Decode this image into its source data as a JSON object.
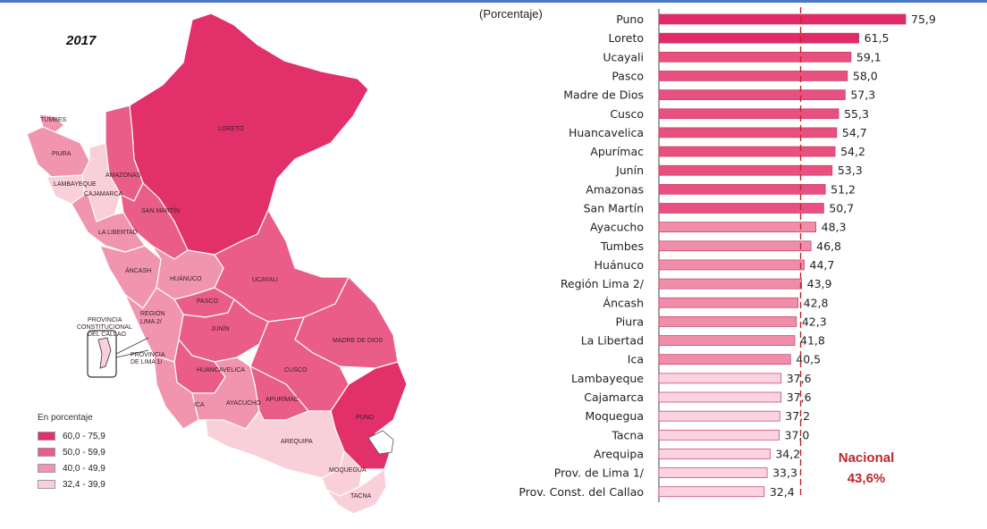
{
  "map": {
    "year": "2017",
    "legend_title": "En porcentaje",
    "legend": [
      {
        "label": "60,0 - 75,9",
        "color": "#e1306a"
      },
      {
        "label": "50,0 - 59,9",
        "color": "#ea5d88"
      },
      {
        "label": "40,0 - 49,9",
        "color": "#f095ad"
      },
      {
        "label": "32,4 - 39,9",
        "color": "#f9cfd9"
      }
    ],
    "region_labels": [
      "TUMBES",
      "PIURA",
      "LAMBAYEQUE",
      "CAJAMARCA",
      "AMAZONAS",
      "LORETO",
      "SAN MARTÍN",
      "LA LIBERTAD",
      "ÁNCASH",
      "HUÁNUCO",
      "UCAYALI",
      "PASCO",
      "REGIÓN",
      "LIMA 2/",
      "JUNÍN",
      "MADRE DE DIOS",
      "HUANCAVELICA",
      "CUSCO",
      "ICA",
      "AYACUCHO",
      "APURÍMAC",
      "PUNO",
      "AREQUIPA",
      "MOQUEGUA",
      "TACNA",
      "PROVINCIA",
      "CONSTITUCIONAL",
      "DEL CALLAO",
      "PROVINCIA",
      "DE LIMA 1/"
    ]
  },
  "chart_unit_label": "(Porcentaje)",
  "national": {
    "label": "Nacional",
    "value_label": "43,6%"
  },
  "chart_data": {
    "type": "bar",
    "orientation": "horizontal",
    "categories": [
      "Puno",
      "Loreto",
      "Ucayali",
      "Pasco",
      "Madre de Dios",
      "Cusco",
      "Huancavelica",
      "Apurímac",
      "Junín",
      "Amazonas",
      "San Martín",
      "Ayacucho",
      "Tumbes",
      "Huánuco",
      "Región Lima 2/",
      "Áncash",
      "Piura",
      "La Libertad",
      "Ica",
      "Lambayeque",
      "Cajamarca",
      "Moquegua",
      "Tacna",
      "Arequipa",
      "Prov. de Lima 1/",
      "Prov. Const. del Callao"
    ],
    "values": [
      75.9,
      61.5,
      59.1,
      58.0,
      57.3,
      55.3,
      54.7,
      54.2,
      53.3,
      51.2,
      50.7,
      48.3,
      46.8,
      44.7,
      43.9,
      42.8,
      42.3,
      41.8,
      40.5,
      37.6,
      37.6,
      37.2,
      37.0,
      34.2,
      33.3,
      32.4
    ],
    "value_labels": [
      "75,9",
      "61,5",
      "59,1",
      "58,0",
      "57,3",
      "55,3",
      "54,7",
      "54,2",
      "53,3",
      "51,2",
      "50,7",
      "48,3",
      "46,8",
      "44,7",
      "43,9",
      "42,8",
      "42,3",
      "41,8",
      "40,5",
      "37,6",
      "37,6",
      "37,2",
      "37,0",
      "34,2",
      "33,3",
      "32,4"
    ],
    "colors": [
      "#e12a68",
      "#e12a68",
      "#e8517f",
      "#e8517f",
      "#e8517f",
      "#e8517f",
      "#e8517f",
      "#e8517f",
      "#e8517f",
      "#e8517f",
      "#e8517f",
      "#f08eaa",
      "#f08eaa",
      "#f08eaa",
      "#f08eaa",
      "#f08eaa",
      "#f08eaa",
      "#f08eaa",
      "#f08eaa",
      "#fbd3de",
      "#fbd3de",
      "#fbd3de",
      "#fbd3de",
      "#fbd3de",
      "#fbd3de",
      "#fbd3de"
    ],
    "reference_line": {
      "value": 43.6,
      "style": "dashed",
      "color": "#c0262d"
    },
    "xlim": [
      0,
      80
    ]
  }
}
